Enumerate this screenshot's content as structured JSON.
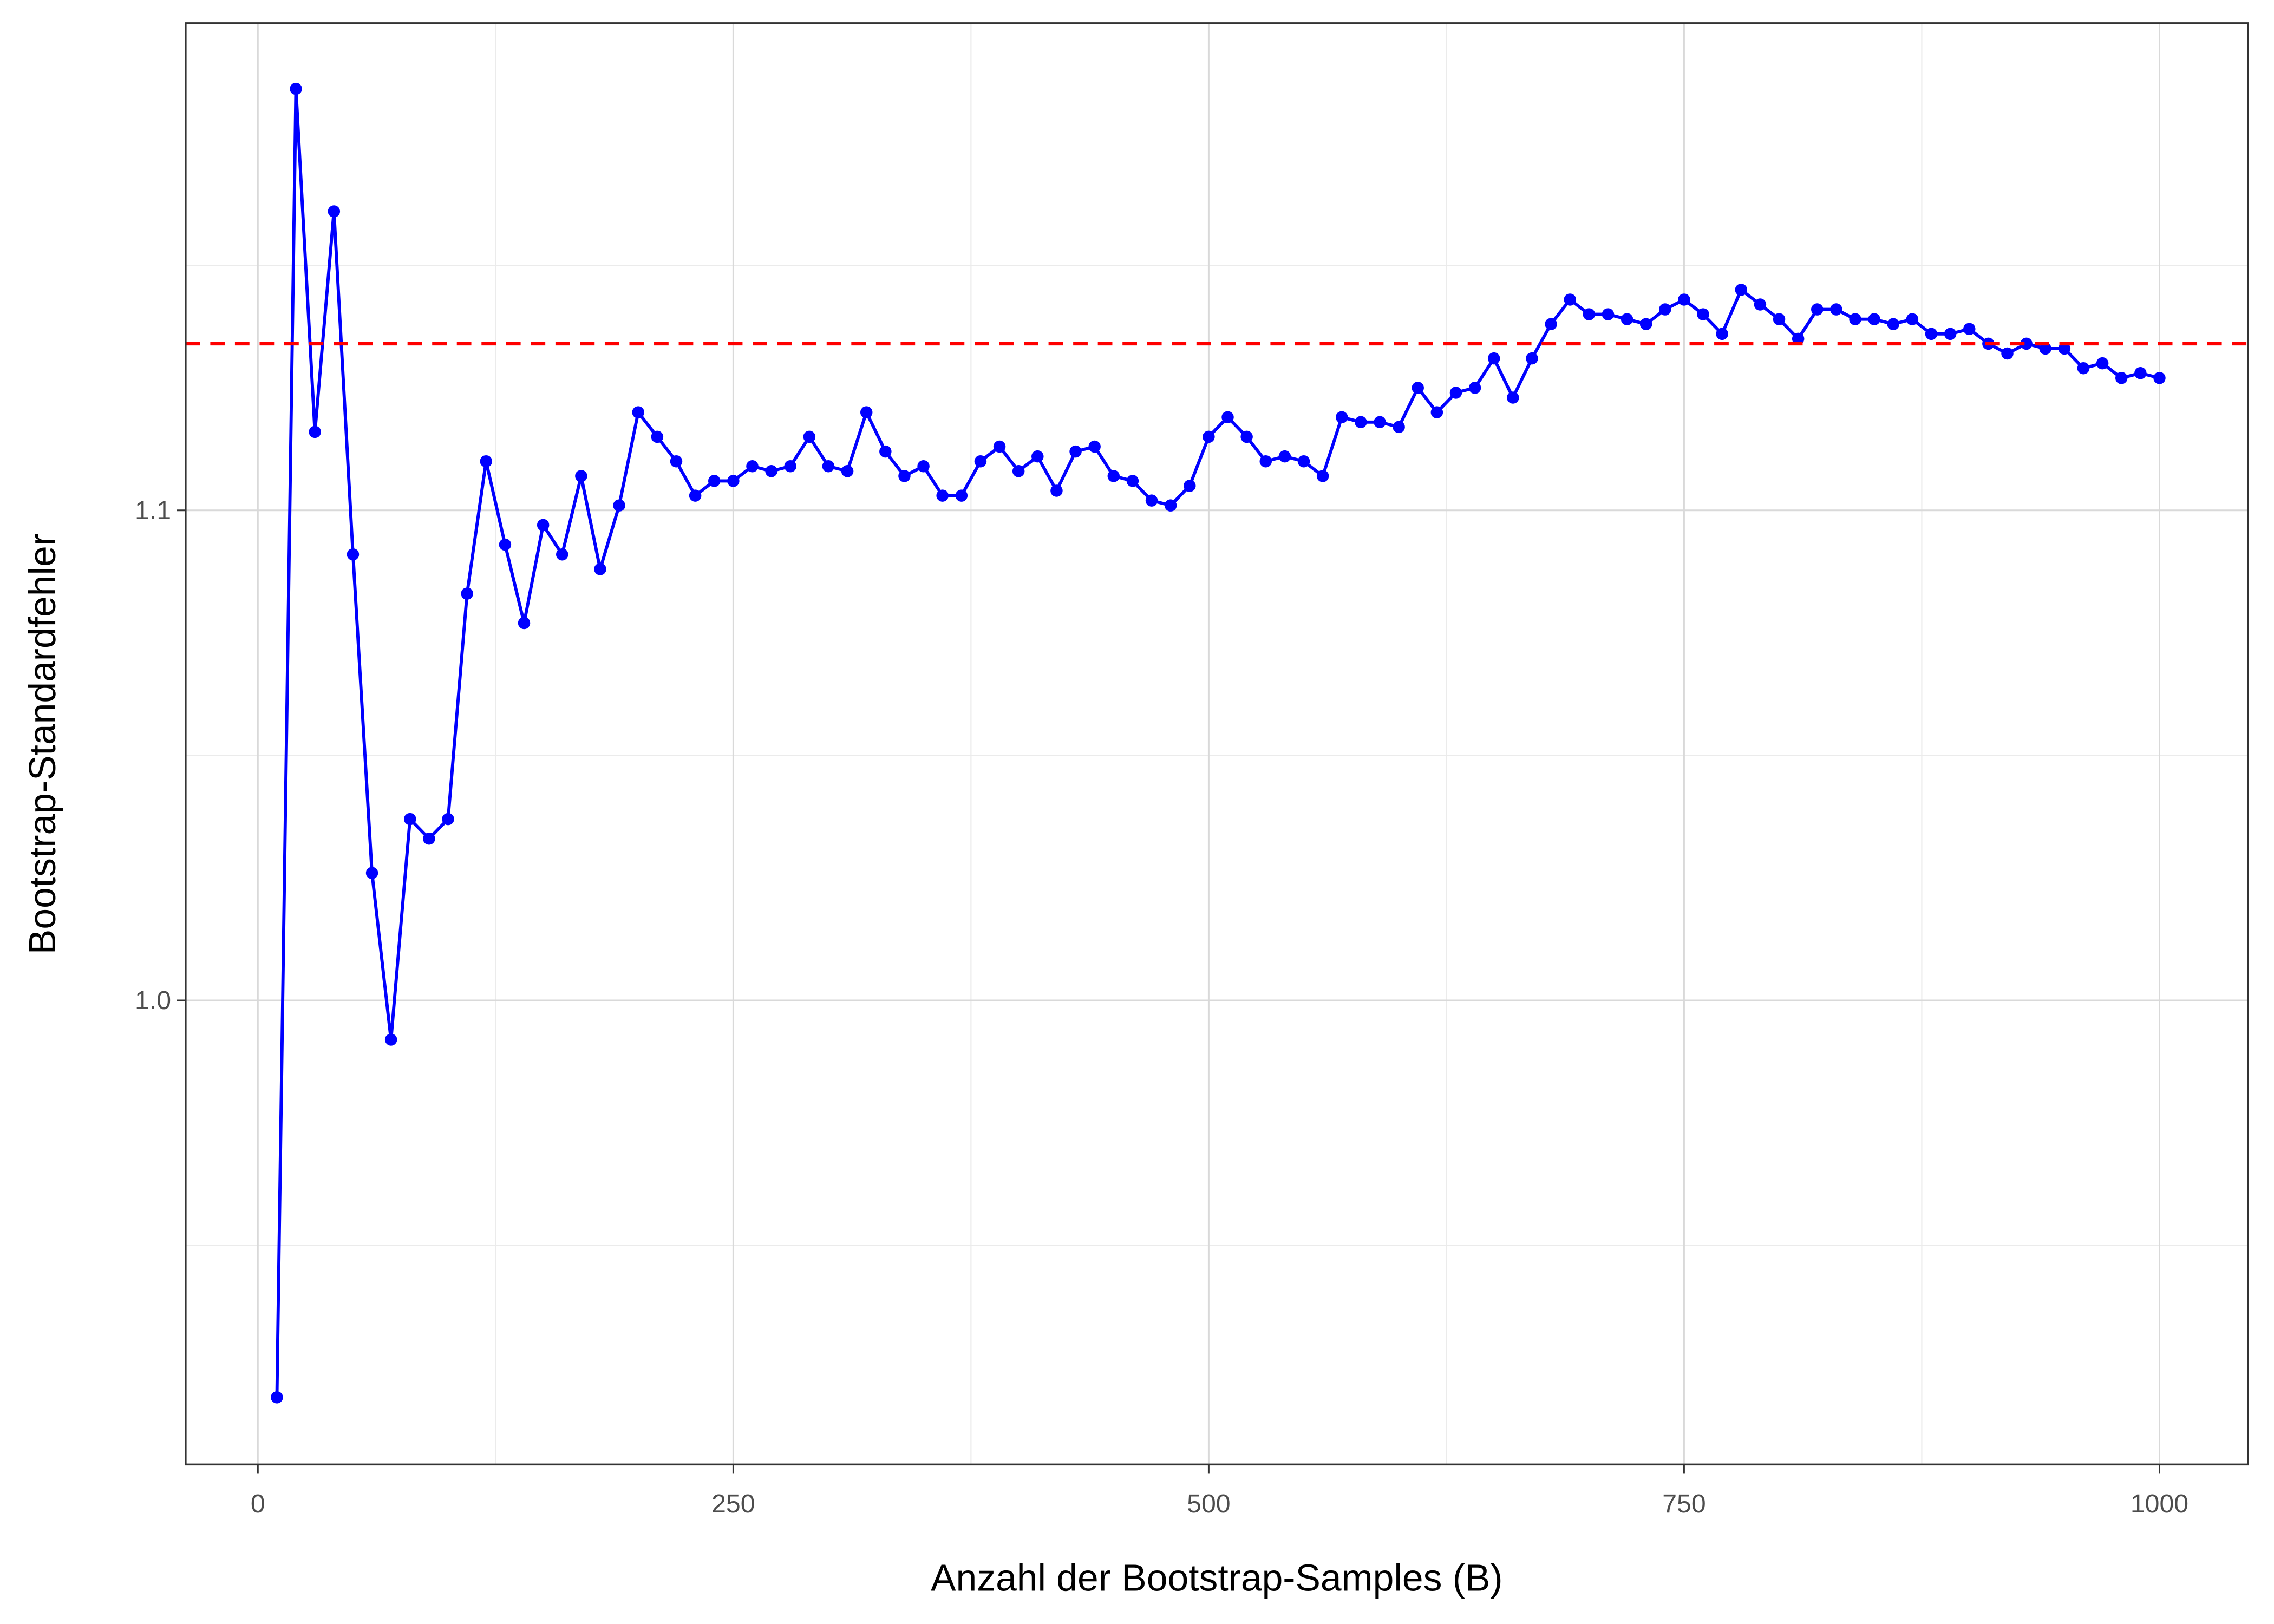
{
  "chart_data": {
    "type": "line",
    "x_label": "Anzahl der Bootstrap-Samples (B)",
    "y_label": "Bootstrap-Standardfehler",
    "x": [
      10,
      20,
      30,
      40,
      50,
      60,
      70,
      80,
      90,
      100,
      110,
      120,
      130,
      140,
      150,
      160,
      170,
      180,
      190,
      200,
      210,
      220,
      230,
      240,
      250,
      260,
      270,
      280,
      290,
      300,
      310,
      320,
      330,
      340,
      350,
      360,
      370,
      380,
      390,
      400,
      410,
      420,
      430,
      440,
      450,
      460,
      470,
      480,
      490,
      500,
      510,
      520,
      530,
      540,
      550,
      560,
      570,
      580,
      590,
      600,
      610,
      620,
      630,
      640,
      650,
      660,
      670,
      680,
      690,
      700,
      710,
      720,
      730,
      740,
      750,
      760,
      770,
      780,
      790,
      800,
      810,
      820,
      830,
      840,
      850,
      860,
      870,
      880,
      890,
      900,
      910,
      920,
      930,
      940,
      950,
      960,
      970,
      980,
      990,
      1000
    ],
    "series": [
      {
        "color": "#0000ff",
        "values": [
          0.919,
          1.186,
          1.116,
          1.161,
          1.091,
          1.026,
          0.992,
          1.037,
          1.033,
          1.037,
          1.083,
          1.11,
          1.093,
          1.077,
          1.097,
          1.091,
          1.107,
          1.088,
          1.101,
          1.12,
          1.115,
          1.11,
          1.103,
          1.106,
          1.106,
          1.109,
          1.108,
          1.109,
          1.115,
          1.109,
          1.108,
          1.12,
          1.112,
          1.107,
          1.109,
          1.103,
          1.103,
          1.11,
          1.113,
          1.108,
          1.111,
          1.104,
          1.112,
          1.113,
          1.107,
          1.106,
          1.102,
          1.101,
          1.105,
          1.115,
          1.119,
          1.115,
          1.11,
          1.111,
          1.11,
          1.107,
          1.119,
          1.118,
          1.118,
          1.117,
          1.125,
          1.12,
          1.124,
          1.125,
          1.131,
          1.123,
          1.131,
          1.138,
          1.143,
          1.14,
          1.14,
          1.139,
          1.138,
          1.141,
          1.143,
          1.14,
          1.136,
          1.145,
          1.142,
          1.139,
          1.135,
          1.141,
          1.141,
          1.139,
          1.139,
          1.138,
          1.139,
          1.136,
          1.136,
          1.137,
          1.134,
          1.132,
          1.134,
          1.133,
          1.133,
          1.129,
          1.13,
          1.127,
          1.128,
          1.127
        ]
      }
    ],
    "hline": 1.134,
    "hline_color": "#ff0000",
    "xlim": [
      -38,
      1046.5
    ],
    "ylim": [
      0.9053,
      1.1994
    ],
    "xticks": [
      0,
      250,
      500,
      750,
      1000
    ],
    "yticks": [
      {
        "value": 1,
        "label": "1.0"
      },
      1.1
    ],
    "grid": true
  }
}
